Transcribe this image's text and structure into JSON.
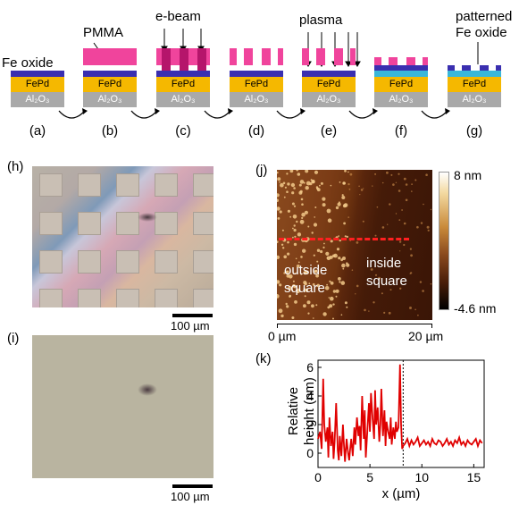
{
  "process": {
    "labels": {
      "fe_oxide": "Fe oxide",
      "pmma": "PMMA",
      "ebeam": "e-beam",
      "plasma": "plasma",
      "patterned_line1": "patterned",
      "patterned_line2": "Fe oxide",
      "fepd": "FePd",
      "al2o3": "Al₂O₃"
    },
    "steps": [
      "(a)",
      "(b)",
      "(c)",
      "(d)",
      "(e)",
      "(f)",
      "(g)"
    ]
  },
  "panel_h": {
    "label": "(h)",
    "scale": "100 µm"
  },
  "panel_i": {
    "label": "(i)",
    "scale": "100 µm"
  },
  "panel_j": {
    "label": "(j)",
    "colorbar_max": "8 nm",
    "colorbar_min": "-4.6 nm",
    "outside_line1": "outside",
    "outside_line2": "square",
    "inside_line1": "inside",
    "inside_line2": "square",
    "x_start": "0 µm",
    "x_end": "20 µm"
  },
  "panel_k": {
    "label": "(k)"
  },
  "chart_data": {
    "type": "line",
    "title": "",
    "xlabel": "x (µm)",
    "ylabel": "Relative height (nm)",
    "xlim": [
      0,
      16
    ],
    "ylim": [
      -1,
      6.5
    ],
    "xticks": [
      0,
      5,
      10,
      15
    ],
    "yticks": [
      0,
      2,
      4,
      6
    ],
    "marker_line_x": 8.2,
    "series": [
      {
        "color": "#e00000",
        "x": [
          0.0,
          0.2,
          0.35,
          0.5,
          0.6,
          0.75,
          0.9,
          1.0,
          1.1,
          1.25,
          1.4,
          1.5,
          1.6,
          1.75,
          1.9,
          2.0,
          2.1,
          2.25,
          2.4,
          2.5,
          2.6,
          2.75,
          2.9,
          3.0,
          3.1,
          3.2,
          3.35,
          3.5,
          3.6,
          3.75,
          3.9,
          4.0,
          4.1,
          4.25,
          4.4,
          4.5,
          4.6,
          4.75,
          4.9,
          5.0,
          5.1,
          5.25,
          5.4,
          5.5,
          5.6,
          5.75,
          5.9,
          6.0,
          6.1,
          6.25,
          6.4,
          6.5,
          6.6,
          6.75,
          6.9,
          7.0,
          7.1,
          7.25,
          7.4,
          7.5,
          7.6,
          7.75,
          7.9,
          8.0,
          8.1,
          8.2,
          8.4,
          8.6,
          8.8,
          9.0,
          9.2,
          9.4,
          9.6,
          9.8,
          10.0,
          10.2,
          10.4,
          10.6,
          10.8,
          11.0,
          11.2,
          11.4,
          11.6,
          11.8,
          12.0,
          12.2,
          12.4,
          12.6,
          12.8,
          13.0,
          13.2,
          13.4,
          13.6,
          13.8,
          14.0,
          14.2,
          14.4,
          14.6,
          14.8,
          15.0,
          15.2,
          15.4,
          15.6,
          15.8
        ],
        "y": [
          1.0,
          1.5,
          0.3,
          5.2,
          2.0,
          0.8,
          1.8,
          -0.3,
          2.5,
          0.5,
          1.5,
          -0.4,
          0.8,
          3.5,
          0.2,
          -0.5,
          1.2,
          -0.2,
          2.0,
          0.5,
          -0.6,
          1.0,
          0.0,
          -0.5,
          0.3,
          1.0,
          -0.2,
          1.8,
          0.6,
          2.5,
          1.2,
          1.9,
          0.2,
          4.0,
          1.0,
          3.0,
          -0.3,
          1.5,
          3.5,
          1.5,
          4.2,
          2.5,
          1.0,
          4.4,
          2.0,
          3.2,
          0.8,
          2.0,
          4.5,
          1.2,
          3.0,
          0.5,
          2.2,
          1.5,
          1.0,
          2.5,
          0.6,
          1.8,
          1.0,
          2.2,
          1.5,
          1.8,
          6.2,
          2.0,
          0.3,
          0.5,
          0.7,
          1.0,
          0.5,
          0.9,
          0.6,
          0.8,
          1.1,
          0.5,
          0.7,
          0.9,
          0.6,
          0.8,
          0.5,
          1.0,
          0.7,
          0.6,
          0.9,
          0.8,
          0.5,
          0.7,
          1.0,
          0.6,
          0.8,
          0.5,
          0.9,
          0.7,
          1.1,
          0.6,
          0.8,
          0.5,
          0.9,
          0.7,
          0.6,
          0.8,
          1.0,
          0.5,
          0.9,
          0.7
        ]
      }
    ]
  }
}
